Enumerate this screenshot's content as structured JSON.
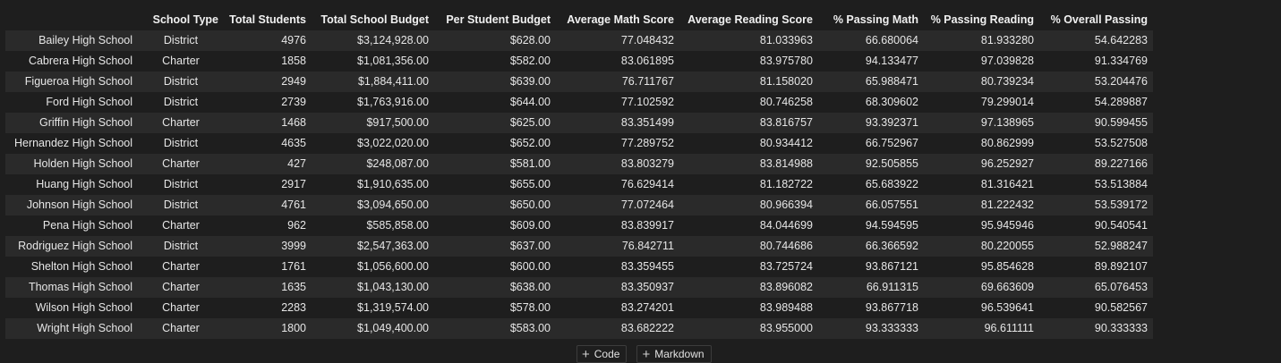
{
  "table": {
    "index_header": "",
    "columns": [
      "School Type",
      "Total Students",
      "Total School Budget",
      "Per Student Budget",
      "Average Math Score",
      "Average Reading Score",
      "% Passing Math",
      "% Passing Reading",
      "% Overall Passing"
    ],
    "rows": [
      [
        "Bailey High School",
        "District",
        "4976",
        "$3,124,928.00",
        "$628.00",
        "77.048432",
        "81.033963",
        "66.680064",
        "81.933280",
        "54.642283"
      ],
      [
        "Cabrera High School",
        "Charter",
        "1858",
        "$1,081,356.00",
        "$582.00",
        "83.061895",
        "83.975780",
        "94.133477",
        "97.039828",
        "91.334769"
      ],
      [
        "Figueroa High School",
        "District",
        "2949",
        "$1,884,411.00",
        "$639.00",
        "76.711767",
        "81.158020",
        "65.988471",
        "80.739234",
        "53.204476"
      ],
      [
        "Ford High School",
        "District",
        "2739",
        "$1,763,916.00",
        "$644.00",
        "77.102592",
        "80.746258",
        "68.309602",
        "79.299014",
        "54.289887"
      ],
      [
        "Griffin High School",
        "Charter",
        "1468",
        "$917,500.00",
        "$625.00",
        "83.351499",
        "83.816757",
        "93.392371",
        "97.138965",
        "90.599455"
      ],
      [
        "Hernandez High School",
        "District",
        "4635",
        "$3,022,020.00",
        "$652.00",
        "77.289752",
        "80.934412",
        "66.752967",
        "80.862999",
        "53.527508"
      ],
      [
        "Holden High School",
        "Charter",
        "427",
        "$248,087.00",
        "$581.00",
        "83.803279",
        "83.814988",
        "92.505855",
        "96.252927",
        "89.227166"
      ],
      [
        "Huang High School",
        "District",
        "2917",
        "$1,910,635.00",
        "$655.00",
        "76.629414",
        "81.182722",
        "65.683922",
        "81.316421",
        "53.513884"
      ],
      [
        "Johnson High School",
        "District",
        "4761",
        "$3,094,650.00",
        "$650.00",
        "77.072464",
        "80.966394",
        "66.057551",
        "81.222432",
        "53.539172"
      ],
      [
        "Pena High School",
        "Charter",
        "962",
        "$585,858.00",
        "$609.00",
        "83.839917",
        "84.044699",
        "94.594595",
        "95.945946",
        "90.540541"
      ],
      [
        "Rodriguez High School",
        "District",
        "3999",
        "$2,547,363.00",
        "$637.00",
        "76.842711",
        "80.744686",
        "66.366592",
        "80.220055",
        "52.988247"
      ],
      [
        "Shelton High School",
        "Charter",
        "1761",
        "$1,056,600.00",
        "$600.00",
        "83.359455",
        "83.725724",
        "93.867121",
        "95.854628",
        "89.892107"
      ],
      [
        "Thomas High School",
        "Charter",
        "1635",
        "$1,043,130.00",
        "$638.00",
        "83.350937",
        "83.896082",
        "66.911315",
        "69.663609",
        "65.076453"
      ],
      [
        "Wilson High School",
        "Charter",
        "2283",
        "$1,319,574.00",
        "$578.00",
        "83.274201",
        "83.989488",
        "93.867718",
        "96.539641",
        "90.582567"
      ],
      [
        "Wright High School",
        "Charter",
        "1800",
        "$1,049,400.00",
        "$583.00",
        "83.682222",
        "83.955000",
        "93.333333",
        "96.611111",
        "90.333333"
      ]
    ]
  },
  "cell_toolbar": {
    "code_label": "Code",
    "markdown_label": "Markdown",
    "plus_glyph": "+"
  },
  "icons": {
    "add_code": "plus-icon",
    "add_markdown": "plus-icon"
  },
  "colors": {
    "background": "#1e1e1e",
    "row_stripe": "#2a2a2a",
    "text": "#e6e6e6"
  }
}
